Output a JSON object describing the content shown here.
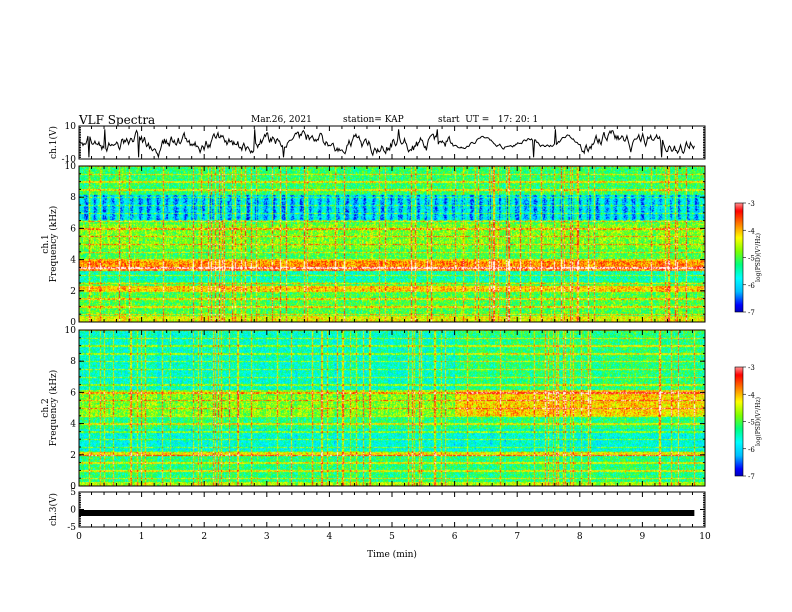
{
  "header": {
    "title": "VLF Spectra",
    "date": "Mar.26, 2021",
    "station": "station= KAP",
    "start": "start  UT =   17: 20: 1"
  },
  "chart_data": [
    {
      "type": "line",
      "panel": "ch1-waveform",
      "ylabel": "ch.1(V)",
      "ylim": [
        -10,
        10
      ],
      "yticks": [
        "10",
        "-10"
      ],
      "x_range_min": [
        0,
        9.83
      ],
      "series": [
        {
          "values_description_free": true,
          "color": "#000000"
        }
      ],
      "style": "noisy oscillating trace between about -9 and +8 V, quieter from 6 to 8 min"
    },
    {
      "type": "heatmap",
      "panel": "ch1-spectrogram",
      "ylabel_lines": [
        "ch.1",
        "Frequency (kHz)"
      ],
      "ylim": [
        0,
        10
      ],
      "yticks": [
        "0",
        "2",
        "4",
        "6",
        "8",
        "10"
      ],
      "colorbar": {
        "label": "log(PSD)(V²/Hz)",
        "ticks": [
          "-3",
          "-4",
          "-5",
          "-6",
          "-7"
        ],
        "range": [
          -7,
          -3
        ]
      }
    },
    {
      "type": "heatmap",
      "panel": "ch2-spectrogram",
      "ylabel_lines": [
        "ch.2",
        "Frequency (kHz)"
      ],
      "ylim": [
        0,
        10
      ],
      "yticks": [
        "0",
        "2",
        "4",
        "6",
        "8",
        "10"
      ],
      "colorbar": {
        "label": "log(PSD)(V²/Hz)",
        "ticks": [
          "-3",
          "-4",
          "-5",
          "-6",
          "-7"
        ],
        "range": [
          -7,
          -3
        ]
      }
    },
    {
      "type": "line",
      "panel": "ch3-waveform",
      "ylabel": "ch.3(V)",
      "ylim": [
        -5,
        5
      ],
      "yticks": [
        "5",
        "0",
        "-5"
      ],
      "series": [
        {
          "name": "",
          "level_v": -1.0,
          "color": "#000000"
        }
      ]
    }
  ],
  "xaxis": {
    "label": "Time  (min)",
    "ticks": [
      "0",
      "1",
      "2",
      "3",
      "4",
      "5",
      "6",
      "7",
      "8",
      "9",
      "10"
    ],
    "range": [
      0,
      10
    ]
  },
  "colors": {
    "colormap": [
      "#000080",
      "#0000ff",
      "#00bfff",
      "#00ffff",
      "#00ff7f",
      "#7fff00",
      "#ffff00",
      "#ff8000",
      "#ff0000",
      "#ffffff"
    ]
  }
}
